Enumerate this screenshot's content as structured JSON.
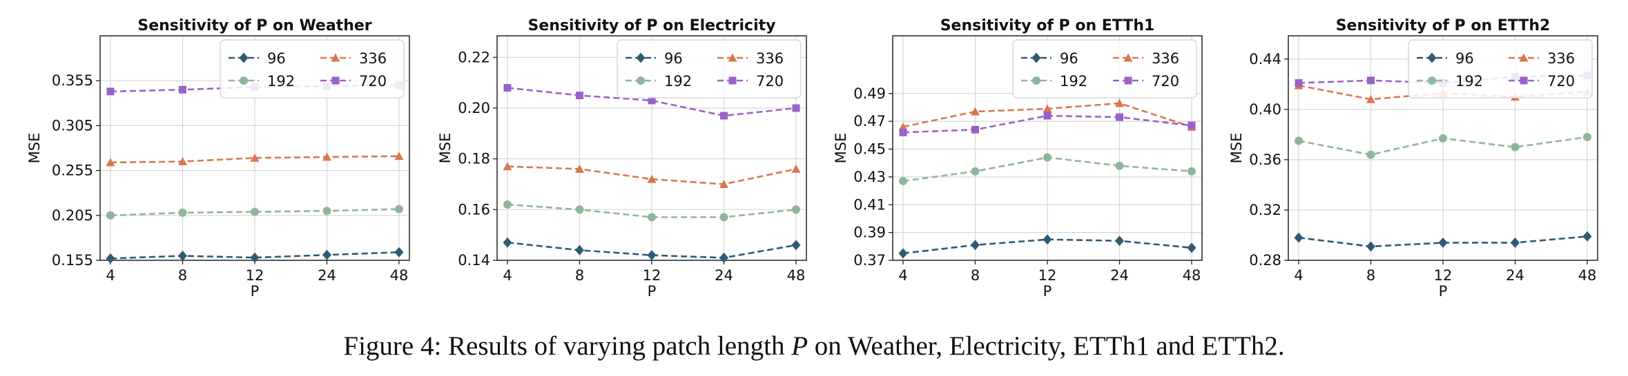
{
  "figure_caption": {
    "prefix": "Figure 4: Results of varying patch length ",
    "symbol": "P",
    "suffix": " on Weather, Electricity, ETTh1 and ETTh2."
  },
  "colors": {
    "96": "#2e5a74",
    "192": "#8fb59a",
    "336": "#d9764f",
    "720": "#9a62c8"
  },
  "chart_data": [
    {
      "type": "line",
      "title": "Sensitivity of P on Weather",
      "xlabel": "P",
      "ylabel": "MSE",
      "categories": [
        "4",
        "8",
        "12",
        "24",
        "48"
      ],
      "yticks": [
        "0.155",
        "0.205",
        "0.255",
        "0.305",
        "0.355"
      ],
      "ylim": [
        0.155,
        0.405
      ],
      "grid": true,
      "legend": "top-right",
      "series": [
        {
          "name": "96",
          "marker": "diamond",
          "values": [
            0.157,
            0.16,
            0.158,
            0.161,
            0.164
          ]
        },
        {
          "name": "192",
          "marker": "circle",
          "values": [
            0.205,
            0.208,
            0.209,
            0.21,
            0.212
          ]
        },
        {
          "name": "336",
          "marker": "triangle",
          "values": [
            0.264,
            0.265,
            0.269,
            0.27,
            0.271
          ]
        },
        {
          "name": "720",
          "marker": "square",
          "values": [
            0.343,
            0.345,
            0.348,
            0.349,
            0.35
          ]
        }
      ]
    },
    {
      "type": "line",
      "title": "Sensitivity of P on Electricity",
      "xlabel": "P",
      "ylabel": "MSE",
      "categories": [
        "4",
        "8",
        "12",
        "24",
        "48"
      ],
      "yticks": [
        "0.14",
        "0.16",
        "0.18",
        "0.20",
        "0.22"
      ],
      "ylim": [
        0.14,
        0.2285
      ],
      "grid": true,
      "legend": "top-right",
      "series": [
        {
          "name": "96",
          "marker": "diamond",
          "values": [
            0.147,
            0.144,
            0.142,
            0.141,
            0.146
          ]
        },
        {
          "name": "192",
          "marker": "circle",
          "values": [
            0.162,
            0.16,
            0.157,
            0.157,
            0.16
          ]
        },
        {
          "name": "336",
          "marker": "triangle",
          "values": [
            0.177,
            0.176,
            0.172,
            0.17,
            0.176
          ]
        },
        {
          "name": "720",
          "marker": "square",
          "values": [
            0.208,
            0.205,
            0.203,
            0.197,
            0.2
          ]
        }
      ]
    },
    {
      "type": "line",
      "title": "Sensitivity of P on ETTh1",
      "xlabel": "P",
      "ylabel": "MSE",
      "categories": [
        "4",
        "8",
        "12",
        "24",
        "48"
      ],
      "yticks": [
        "0.37",
        "0.39",
        "0.41",
        "0.43",
        "0.45",
        "0.47",
        "0.49"
      ],
      "ylim": [
        0.37,
        0.5315
      ],
      "grid": true,
      "legend": "top-right",
      "series": [
        {
          "name": "96",
          "marker": "diamond",
          "values": [
            0.375,
            0.381,
            0.385,
            0.384,
            0.379
          ]
        },
        {
          "name": "192",
          "marker": "circle",
          "values": [
            0.427,
            0.434,
            0.444,
            0.438,
            0.434
          ]
        },
        {
          "name": "336",
          "marker": "triangle",
          "values": [
            0.466,
            0.477,
            0.479,
            0.483,
            0.466
          ]
        },
        {
          "name": "720",
          "marker": "square",
          "values": [
            0.462,
            0.464,
            0.474,
            0.473,
            0.467
          ]
        }
      ]
    },
    {
      "type": "line",
      "title": "Sensitivity of P on ETTh2",
      "xlabel": "P",
      "ylabel": "MSE",
      "categories": [
        "4",
        "8",
        "12",
        "24",
        "48"
      ],
      "yticks": [
        "0.28",
        "0.32",
        "0.36",
        "0.40",
        "0.44"
      ],
      "ylim": [
        0.28,
        0.4585
      ],
      "grid": true,
      "legend": "top-right",
      "series": [
        {
          "name": "96",
          "marker": "diamond",
          "values": [
            0.298,
            0.291,
            0.294,
            0.294,
            0.299
          ]
        },
        {
          "name": "192",
          "marker": "circle",
          "values": [
            0.375,
            0.364,
            0.377,
            0.37,
            0.378
          ]
        },
        {
          "name": "336",
          "marker": "triangle",
          "values": [
            0.419,
            0.408,
            0.413,
            0.41,
            0.414
          ]
        },
        {
          "name": "720",
          "marker": "square",
          "values": [
            0.421,
            0.423,
            0.421,
            0.426,
            0.427
          ]
        }
      ]
    }
  ]
}
